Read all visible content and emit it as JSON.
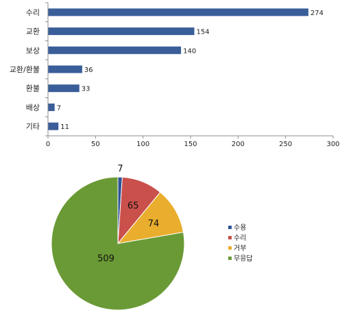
{
  "chart_data": [
    {
      "type": "bar",
      "orientation": "horizontal",
      "categories": [
        "수리",
        "교환",
        "보상",
        "교환/환불",
        "환불",
        "배상",
        "기타"
      ],
      "values": [
        274,
        154,
        140,
        36,
        33,
        7,
        11
      ],
      "xlim": [
        0,
        300
      ],
      "xticks": [
        0,
        50,
        100,
        150,
        200,
        250,
        300
      ],
      "grid": false,
      "legend": "none",
      "colors": {
        "bar": "#3A5E99"
      }
    },
    {
      "type": "pie",
      "labels": [
        "수용",
        "수리",
        "거부",
        "무응답"
      ],
      "values": [
        7,
        65,
        74,
        509
      ],
      "colors": [
        "#2F5496",
        "#C9504B",
        "#E9AE2D",
        "#6A9A35"
      ],
      "legend": "right"
    }
  ]
}
